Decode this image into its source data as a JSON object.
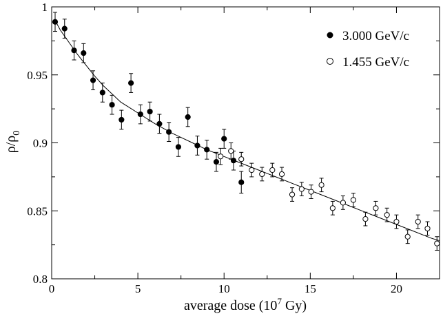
{
  "chart_data": {
    "type": "scatter",
    "xlabel": {
      "main": "average dose (10",
      "sup": "7",
      "tail": " Gy)"
    },
    "ylabel": {
      "main": "ρ/ρ",
      "sub": "0"
    },
    "xlim": [
      0,
      22.5
    ],
    "ylim": [
      0.8,
      1.0
    ],
    "x_ticks": [
      0,
      5,
      10,
      15,
      20
    ],
    "x_tick_labels": [
      "0",
      "5",
      "10",
      "15",
      "20"
    ],
    "y_ticks": [
      0.8,
      0.85,
      0.9,
      0.95,
      1.0
    ],
    "y_tick_labels": [
      "0.8",
      "0.85",
      "0.9",
      "0.95",
      "1"
    ],
    "grid": false,
    "legend_position": "top-right",
    "series": [
      {
        "name": "3.000 GeV/c",
        "marker": "filled-circle",
        "color": "#000000",
        "points": [
          {
            "x": 0.2,
            "y": 0.989,
            "err": 0.007
          },
          {
            "x": 0.75,
            "y": 0.984,
            "err": 0.007
          },
          {
            "x": 1.3,
            "y": 0.968,
            "err": 0.007
          },
          {
            "x": 1.85,
            "y": 0.966,
            "err": 0.007
          },
          {
            "x": 2.4,
            "y": 0.946,
            "err": 0.007
          },
          {
            "x": 2.95,
            "y": 0.937,
            "err": 0.007
          },
          {
            "x": 3.5,
            "y": 0.928,
            "err": 0.007
          },
          {
            "x": 4.05,
            "y": 0.917,
            "err": 0.007
          },
          {
            "x": 4.6,
            "y": 0.944,
            "err": 0.007
          },
          {
            "x": 5.15,
            "y": 0.921,
            "err": 0.007
          },
          {
            "x": 5.7,
            "y": 0.923,
            "err": 0.007
          },
          {
            "x": 6.25,
            "y": 0.914,
            "err": 0.007
          },
          {
            "x": 6.8,
            "y": 0.908,
            "err": 0.007
          },
          {
            "x": 7.35,
            "y": 0.897,
            "err": 0.007
          },
          {
            "x": 7.9,
            "y": 0.919,
            "err": 0.007
          },
          {
            "x": 8.45,
            "y": 0.898,
            "err": 0.007
          },
          {
            "x": 9.0,
            "y": 0.895,
            "err": 0.007
          },
          {
            "x": 9.55,
            "y": 0.886,
            "err": 0.007
          },
          {
            "x": 10.0,
            "y": 0.903,
            "err": 0.007
          },
          {
            "x": 10.55,
            "y": 0.887,
            "err": 0.007
          },
          {
            "x": 11.0,
            "y": 0.871,
            "err": 0.008
          }
        ]
      },
      {
        "name": "1.455 GeV/c",
        "marker": "open-circle",
        "color": "#000000",
        "points": [
          {
            "x": 9.8,
            "y": 0.89,
            "err": 0.006
          },
          {
            "x": 10.4,
            "y": 0.894,
            "err": 0.006
          },
          {
            "x": 11.0,
            "y": 0.888,
            "err": 0.005
          },
          {
            "x": 11.6,
            "y": 0.88,
            "err": 0.005
          },
          {
            "x": 12.2,
            "y": 0.877,
            "err": 0.005
          },
          {
            "x": 12.8,
            "y": 0.88,
            "err": 0.005
          },
          {
            "x": 13.35,
            "y": 0.877,
            "err": 0.005
          },
          {
            "x": 13.95,
            "y": 0.862,
            "err": 0.005
          },
          {
            "x": 14.5,
            "y": 0.866,
            "err": 0.005
          },
          {
            "x": 15.05,
            "y": 0.864,
            "err": 0.005
          },
          {
            "x": 15.65,
            "y": 0.869,
            "err": 0.005
          },
          {
            "x": 16.3,
            "y": 0.852,
            "err": 0.005
          },
          {
            "x": 16.9,
            "y": 0.856,
            "err": 0.005
          },
          {
            "x": 17.5,
            "y": 0.858,
            "err": 0.005
          },
          {
            "x": 18.2,
            "y": 0.844,
            "err": 0.005
          },
          {
            "x": 18.8,
            "y": 0.852,
            "err": 0.005
          },
          {
            "x": 19.45,
            "y": 0.847,
            "err": 0.005
          },
          {
            "x": 20.0,
            "y": 0.842,
            "err": 0.005
          },
          {
            "x": 20.65,
            "y": 0.831,
            "err": 0.005
          },
          {
            "x": 21.25,
            "y": 0.842,
            "err": 0.005
          },
          {
            "x": 21.8,
            "y": 0.837,
            "err": 0.005
          },
          {
            "x": 22.35,
            "y": 0.826,
            "err": 0.005
          }
        ]
      }
    ],
    "fit_curve": {
      "style": "solid-line",
      "points": [
        {
          "x": 0.2,
          "y": 0.99
        },
        {
          "x": 0.5,
          "y": 0.983
        },
        {
          "x": 1.0,
          "y": 0.974
        },
        {
          "x": 1.5,
          "y": 0.965
        },
        {
          "x": 2.0,
          "y": 0.957
        },
        {
          "x": 2.5,
          "y": 0.949
        },
        {
          "x": 3.0,
          "y": 0.942
        },
        {
          "x": 3.5,
          "y": 0.936
        },
        {
          "x": 4.0,
          "y": 0.93
        },
        {
          "x": 4.5,
          "y": 0.926
        },
        {
          "x": 5.0,
          "y": 0.922
        },
        {
          "x": 6.0,
          "y": 0.914
        },
        {
          "x": 7.0,
          "y": 0.907
        },
        {
          "x": 8.0,
          "y": 0.901
        },
        {
          "x": 9.0,
          "y": 0.895
        },
        {
          "x": 10.0,
          "y": 0.89
        },
        {
          "x": 11.0,
          "y": 0.885
        },
        {
          "x": 12.0,
          "y": 0.88
        },
        {
          "x": 13.0,
          "y": 0.875
        },
        {
          "x": 14.0,
          "y": 0.87
        },
        {
          "x": 15.0,
          "y": 0.865
        },
        {
          "x": 16.0,
          "y": 0.86
        },
        {
          "x": 17.0,
          "y": 0.855
        },
        {
          "x": 18.0,
          "y": 0.85
        },
        {
          "x": 19.0,
          "y": 0.845
        },
        {
          "x": 20.0,
          "y": 0.84
        },
        {
          "x": 21.0,
          "y": 0.835
        },
        {
          "x": 22.0,
          "y": 0.83
        },
        {
          "x": 22.5,
          "y": 0.828
        }
      ]
    }
  }
}
